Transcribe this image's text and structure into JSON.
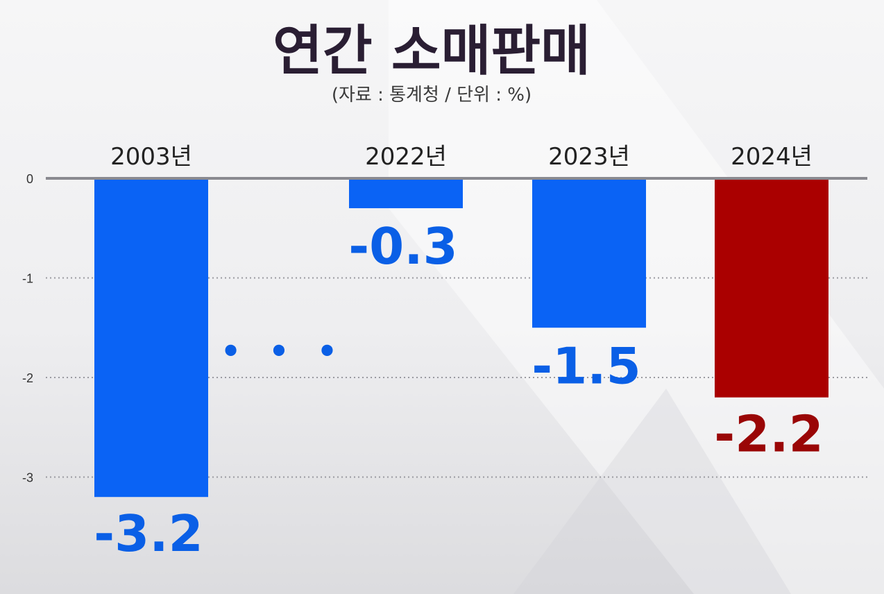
{
  "title": "연간 소매판매",
  "subtitle": "(자료 : 통계청 / 단위 : %)",
  "chart_data": {
    "type": "bar",
    "title": "연간 소매판매",
    "subtitle": "(자료 : 통계청 / 단위 : %)",
    "categories": [
      "2003년",
      "2022년",
      "2023년",
      "2024년"
    ],
    "values": [
      -3.2,
      -0.3,
      -1.5,
      -2.2
    ],
    "data_labels": [
      "-3.2",
      "-0.3",
      "-1.5",
      "-2.2"
    ],
    "bar_colors": [
      "#0a63f5",
      "#0a63f5",
      "#0a63f5",
      "#aa0000"
    ],
    "label_colors": [
      "#0a5fe6",
      "#0a5fe6",
      "#0a5fe6",
      "#9a0606"
    ],
    "yticks": [
      0,
      -1,
      -2,
      -3
    ],
    "ytick_labels": [
      "0",
      "-1",
      "-2",
      "-3"
    ],
    "ylim": [
      -3.2,
      0
    ],
    "grid": true,
    "gap_marker": "• • •",
    "xlabel": "",
    "ylabel": ""
  }
}
